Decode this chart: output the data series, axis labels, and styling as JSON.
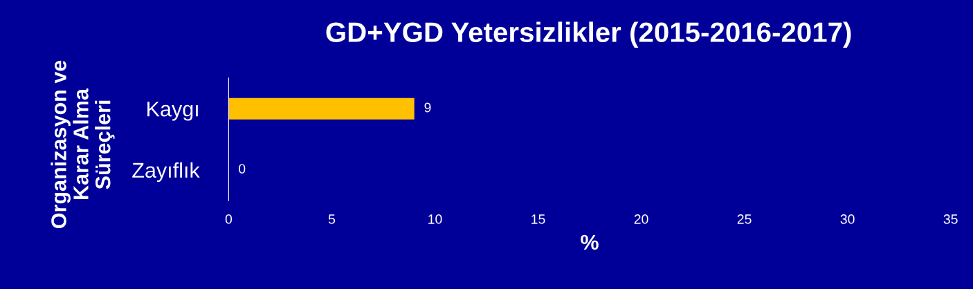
{
  "chart_data": {
    "type": "bar",
    "orientation": "horizontal",
    "title": "GD+YGD Yetersizlikler (2015-2016-2017)",
    "ylabel": "Organizasyon ve\nKarar Alma\nSüreçleri",
    "xlabel": "%",
    "categories": [
      "Kaygı",
      "Zayıflık"
    ],
    "values": [
      9,
      0
    ],
    "color": "#ffc000",
    "xlim": [
      0,
      35
    ],
    "xticks": [
      0,
      5,
      10,
      15,
      20,
      25,
      30,
      35
    ],
    "data_labels": true,
    "grid": false,
    "legend": false
  }
}
